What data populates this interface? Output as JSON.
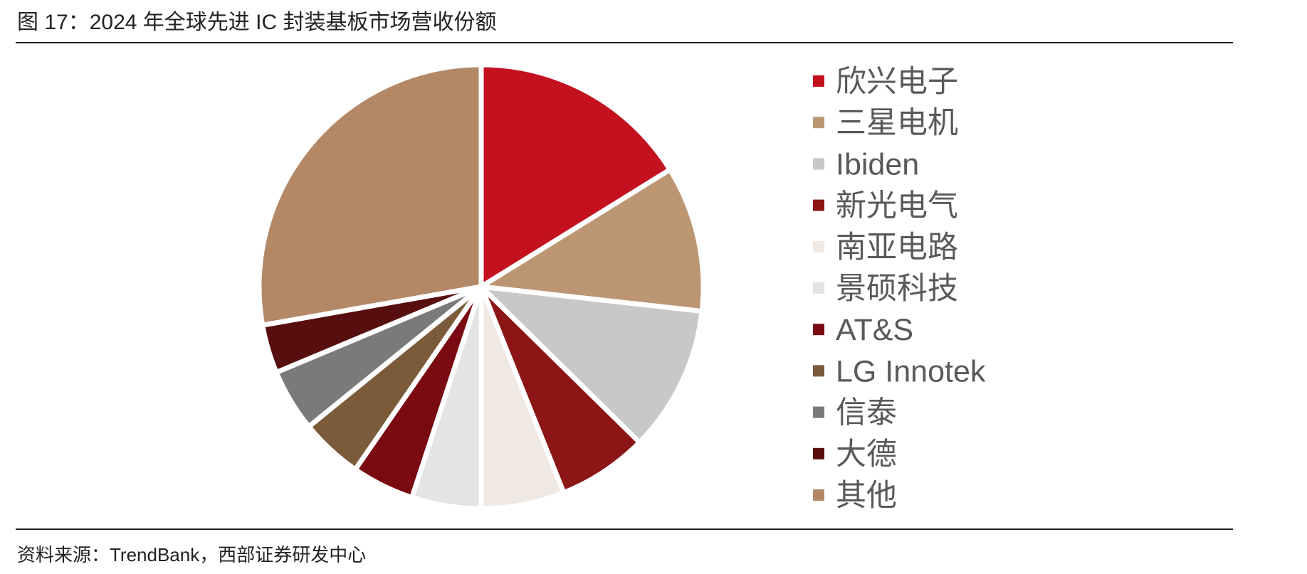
{
  "figure_title": "图 17：2024 年全球先进 IC 封装基板市场营收份额",
  "source_note": "资料来源：TrendBank，西部证券研发中心",
  "chart_data": {
    "type": "pie",
    "title": "",
    "legend_placement": "right",
    "series": [
      {
        "name": "欣兴电子",
        "value": 16,
        "color": "#C3111F"
      },
      {
        "name": "三星电机",
        "value": 10.5,
        "color": "#BC9672"
      },
      {
        "name": "Ibiden",
        "value": 10.5,
        "color": "#C8C8C8"
      },
      {
        "name": "新光电气",
        "value": 6.5,
        "color": "#8C1515"
      },
      {
        "name": "南亚电路",
        "value": 6,
        "color": "#F0E8E3"
      },
      {
        "name": "景硕科技",
        "value": 5,
        "color": "#E4E4E4"
      },
      {
        "name": "AT&S",
        "value": 4.5,
        "color": "#7A0A12"
      },
      {
        "name": "LG Innotek",
        "value": 4.5,
        "color": "#7B5B3A"
      },
      {
        "name": "信泰",
        "value": 4.5,
        "color": "#7A7A7A"
      },
      {
        "name": "大德",
        "value": 3.5,
        "color": "#570E0E"
      },
      {
        "name": "其他",
        "value": 27.5,
        "color": "#B38866"
      }
    ]
  }
}
